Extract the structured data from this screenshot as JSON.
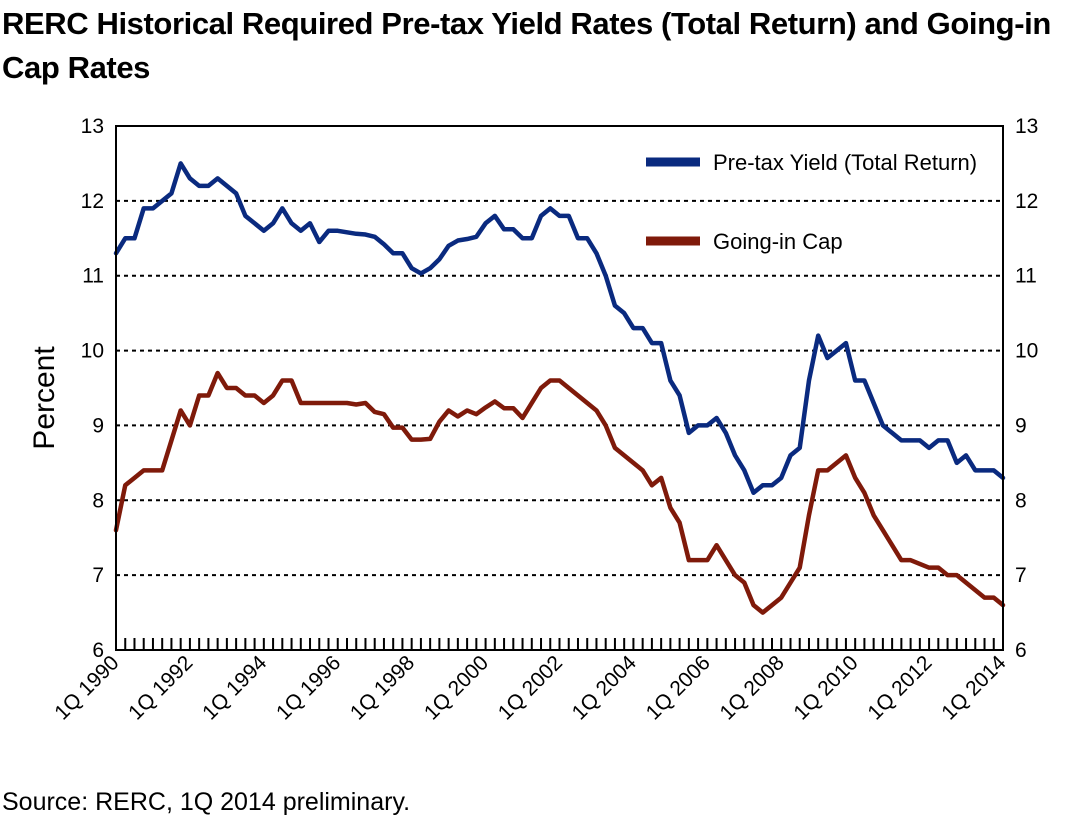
{
  "chart_data": {
    "type": "line",
    "title": "RERC Historical Required Pre-tax Yield Rates (Total Return) and Going-in Cap Rates",
    "ylabel": "Percent",
    "ylim": [
      6,
      13
    ],
    "yticks": [
      "6",
      "7",
      "8",
      "9",
      "10",
      "11",
      "12",
      "13"
    ],
    "x_start": "1Q 1990",
    "x_end": "1Q 2014",
    "x_frequency": "quarterly",
    "x_tick_labels": [
      "1Q 1990",
      "1Q 1992",
      "1Q 1994",
      "1Q 1996",
      "1Q 1998",
      "1Q 2000",
      "1Q 2002",
      "1Q 2004",
      "1Q 2006",
      "1Q 2008",
      "1Q 2010",
      "1Q 2012",
      "1Q 2014"
    ],
    "grid": "horizontal-dashed",
    "legend_position": "top-right",
    "series": [
      {
        "name": "Pre-tax Yield (Total Return)",
        "color": "#0a2a7f",
        "values": [
          11.3,
          11.5,
          11.5,
          11.9,
          11.9,
          12.0,
          12.1,
          12.5,
          12.3,
          12.2,
          12.2,
          12.3,
          12.2,
          12.1,
          11.8,
          11.7,
          11.6,
          11.7,
          11.9,
          11.7,
          11.6,
          11.7,
          11.45,
          11.6,
          11.6,
          11.58,
          11.56,
          11.55,
          11.52,
          11.42,
          11.3,
          11.3,
          11.1,
          11.03,
          11.1,
          11.22,
          11.4,
          11.47,
          11.49,
          11.52,
          11.7,
          11.8,
          11.62,
          11.62,
          11.5,
          11.5,
          11.8,
          11.9,
          11.8,
          11.8,
          11.5,
          11.5,
          11.3,
          11.0,
          10.6,
          10.5,
          10.3,
          10.3,
          10.1,
          10.1,
          9.6,
          9.4,
          8.9,
          9.0,
          9.0,
          9.1,
          8.9,
          8.6,
          8.4,
          8.1,
          8.2,
          8.2,
          8.3,
          8.6,
          8.7,
          9.6,
          10.2,
          9.9,
          10.0,
          10.1,
          9.6,
          9.6,
          9.3,
          9.0,
          8.9,
          8.8,
          8.8,
          8.8,
          8.7,
          8.8,
          8.8,
          8.5,
          8.6,
          8.4,
          8.4,
          8.4,
          8.3
        ]
      },
      {
        "name": "Going-in Cap",
        "color": "#7f1a0a",
        "values": [
          7.6,
          8.2,
          8.3,
          8.4,
          8.4,
          8.4,
          8.8,
          9.2,
          9.0,
          9.4,
          9.4,
          9.7,
          9.5,
          9.5,
          9.4,
          9.4,
          9.3,
          9.4,
          9.6,
          9.6,
          9.3,
          9.3,
          9.3,
          9.3,
          9.3,
          9.3,
          9.28,
          9.3,
          9.18,
          9.15,
          8.97,
          8.97,
          8.81,
          8.81,
          8.82,
          9.05,
          9.2,
          9.12,
          9.2,
          9.15,
          9.24,
          9.32,
          9.23,
          9.23,
          9.1,
          9.3,
          9.5,
          9.6,
          9.6,
          9.5,
          9.4,
          9.3,
          9.2,
          9.0,
          8.7,
          8.6,
          8.5,
          8.4,
          8.2,
          8.3,
          7.9,
          7.7,
          7.2,
          7.2,
          7.2,
          7.4,
          7.2,
          7.0,
          6.9,
          6.6,
          6.5,
          6.6,
          6.7,
          6.9,
          7.1,
          7.8,
          8.4,
          8.4,
          8.5,
          8.6,
          8.3,
          8.1,
          7.8,
          7.6,
          7.4,
          7.2,
          7.2,
          7.15,
          7.1,
          7.1,
          7.0,
          7.0,
          6.9,
          6.8,
          6.7,
          6.7,
          6.6
        ]
      }
    ]
  },
  "source_note": "Source: RERC, 1Q 2014 preliminary."
}
